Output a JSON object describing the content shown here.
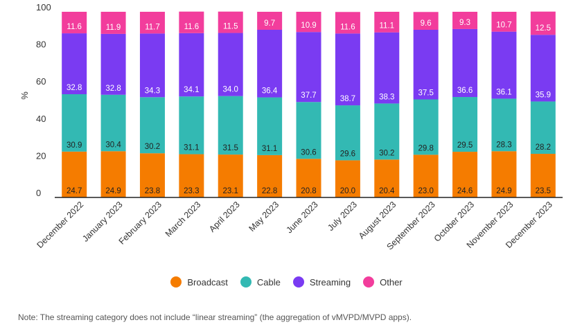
{
  "chart_data": {
    "type": "bar",
    "stacked": true,
    "ylabel": "%",
    "ylim": [
      0,
      100
    ],
    "yticks": [
      0,
      20,
      40,
      60,
      80,
      100
    ],
    "grid": false,
    "legend_position": "bottom",
    "categories": [
      "December 2022",
      "January 2023",
      "February 2023",
      "March 2023",
      "April 2023",
      "May 2023",
      "June 2023",
      "July 2023",
      "August 2023",
      "September 2023",
      "October 2023",
      "November 2023",
      "December 2023"
    ],
    "series": [
      {
        "name": "Broadcast",
        "color": "#f57c00",
        "label_color": "#222222",
        "values": [
          24.7,
          24.9,
          23.8,
          23.3,
          23.1,
          22.8,
          20.8,
          20.0,
          20.4,
          23.0,
          24.6,
          24.9,
          23.5
        ]
      },
      {
        "name": "Cable",
        "color": "#33b9b3",
        "label_color": "#222222",
        "values": [
          30.9,
          30.4,
          30.2,
          31.1,
          31.5,
          31.1,
          30.6,
          29.6,
          30.2,
          29.8,
          29.5,
          28.3,
          28.2
        ]
      },
      {
        "name": "Streaming",
        "color": "#7a3bf2",
        "label_color": "#ffffff",
        "values": [
          32.8,
          32.8,
          34.3,
          34.1,
          34.0,
          36.4,
          37.7,
          38.7,
          38.3,
          37.5,
          36.6,
          36.1,
          35.9
        ]
      },
      {
        "name": "Other",
        "color": "#f23d9c",
        "label_color": "#ffffff",
        "values": [
          11.6,
          11.9,
          11.7,
          11.6,
          11.5,
          9.7,
          10.9,
          11.6,
          11.1,
          9.6,
          9.3,
          10.7,
          12.5
        ]
      }
    ]
  },
  "note": "Note: The streaming category does not include “linear streaming” (the aggregation of vMVPD/MVPD apps)."
}
